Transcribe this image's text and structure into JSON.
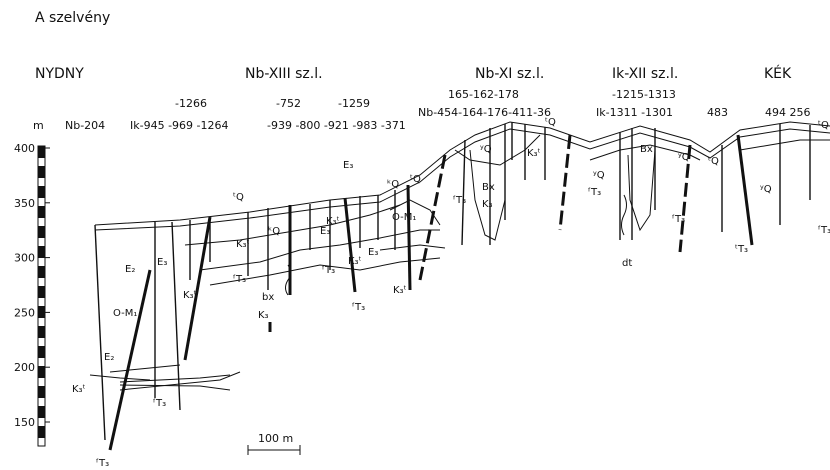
{
  "title": "A szelvény",
  "regions": [
    "NYDNY",
    "Nb-XIII sz.l.",
    "Nb-XI sz.l.",
    "Ik-XII sz.l.",
    "KÉK"
  ],
  "elevation_axis": {
    "unit": "m",
    "ticks": [
      400,
      350,
      300,
      250,
      200,
      150
    ]
  },
  "boreholes_top": [
    "-1266",
    "-752",
    "-1259",
    "165-162-178",
    "-1215-1313"
  ],
  "boreholes": [
    "Nb-204",
    "Ik-945 -969 -1264",
    "-939 -800 -921 -983 -371",
    "Nb-454-164-176-411-36",
    "Ik-1311 -1301",
    "483",
    "494  256"
  ],
  "scale_bar": "100 m",
  "formations": [
    "ᵗQ",
    "ᵏQ",
    "K₃ᵗ",
    "ᶠT₃",
    "bx",
    "K₃",
    "O-M₁",
    "E₂",
    "E₃",
    "K₃ᵗ",
    "E₂",
    "K₃ᵗ",
    "ᶠT₃",
    "ᶠT₃",
    "E₃",
    "ᵏQ",
    "ᵗQ",
    "O-M₁",
    "E₃",
    "K₃ᵗ",
    "ᶠT₃",
    "K₃ᵗ",
    "E₃",
    "K₃ᵗ",
    "ᶠT₃",
    "ᵗQ",
    "ʸQ",
    "Bx",
    "K₃",
    "ᶠT₃",
    "K₃ᵗ",
    "ʸQ",
    "Bx",
    "ʸQ",
    "ᶠT₃",
    "ᶠT₃",
    "dt",
    "ᵗQ",
    "ʸQ",
    "ᵗQ",
    "ᶠT₃",
    "ᵗT₃"
  ]
}
